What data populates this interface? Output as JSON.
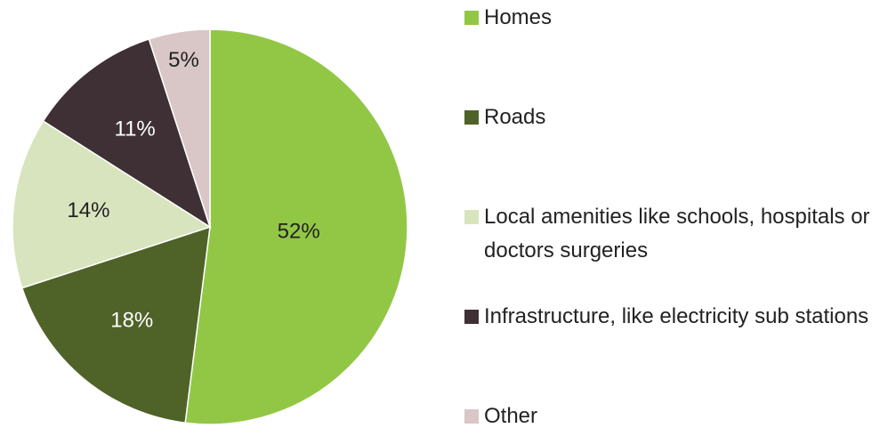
{
  "chart_data": {
    "type": "pie",
    "categories": [
      "Homes",
      "Roads",
      "Local amenities like schools, hospitals or doctors surgeries",
      "Infrastructure, like electricity sub stations",
      "Other"
    ],
    "values": [
      52,
      18,
      14,
      11,
      5
    ],
    "value_labels": [
      "52%",
      "18%",
      "14%",
      "11%",
      "5%"
    ],
    "colors": [
      "#92c746",
      "#4f6228",
      "#d7e4bd",
      "#3f3035",
      "#d9c6c6"
    ]
  }
}
